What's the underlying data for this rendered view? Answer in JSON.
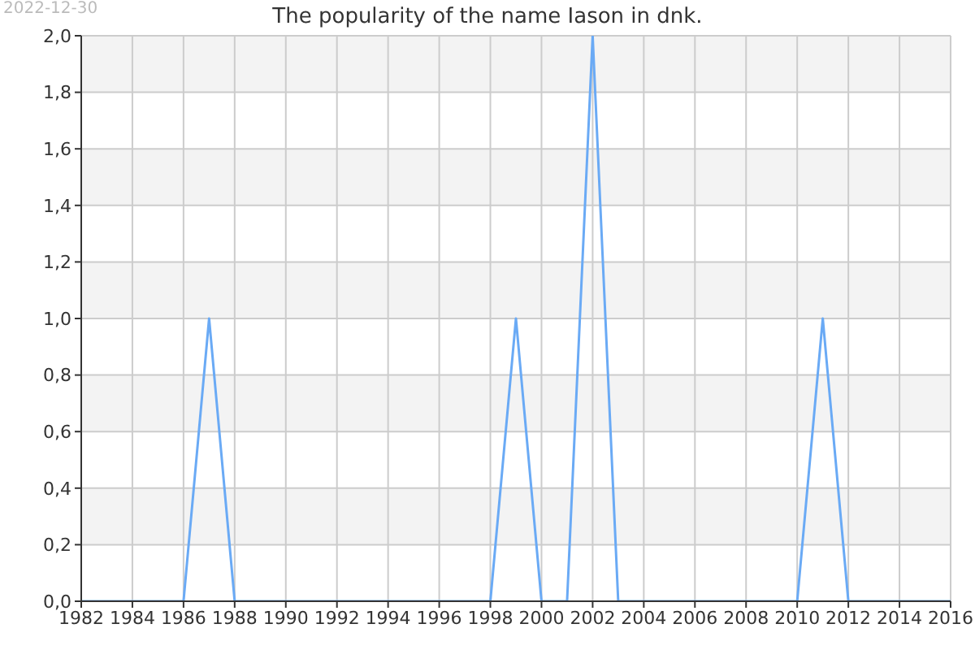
{
  "chart_data": {
    "type": "line",
    "title": "The popularity of the name Iason in dnk.",
    "annotations": [
      "2022-12-30"
    ],
    "x": [
      1982,
      1983,
      1984,
      1985,
      1986,
      1987,
      1988,
      1989,
      1990,
      1991,
      1992,
      1993,
      1994,
      1995,
      1996,
      1997,
      1998,
      1999,
      2000,
      2001,
      2002,
      2003,
      2004,
      2005,
      2006,
      2007,
      2008,
      2009,
      2010,
      2011,
      2012,
      2013,
      2014,
      2015,
      2016
    ],
    "series": [
      {
        "color": "#6aaaf5",
        "values": [
          0,
          0,
          0,
          0,
          0,
          1,
          0,
          0,
          0,
          0,
          0,
          0,
          0,
          0,
          0,
          0,
          0,
          1,
          0,
          0,
          2,
          0,
          0,
          0,
          0,
          0,
          0,
          0,
          0,
          1,
          0,
          0,
          0,
          0,
          0
        ]
      }
    ],
    "xlim": [
      1982,
      2016
    ],
    "xticks": [
      1982,
      1984,
      1986,
      1988,
      1990,
      1992,
      1994,
      1996,
      1998,
      2000,
      2002,
      2004,
      2006,
      2008,
      2010,
      2012,
      2014,
      2016
    ],
    "ylim": [
      0,
      2
    ],
    "yticks": [
      {
        "value": 0,
        "label": "0,0"
      },
      {
        "value": 0.2,
        "label": "0,2"
      },
      {
        "value": 0.4,
        "label": "0,4"
      },
      {
        "value": 0.6,
        "label": "0,6"
      },
      {
        "value": 0.8,
        "label": "0,8"
      },
      {
        "value": 1,
        "label": "1,0"
      },
      {
        "value": 1.2,
        "label": "1,2"
      },
      {
        "value": 1.4,
        "label": "1,4"
      },
      {
        "value": 1.6,
        "label": "1,6"
      },
      {
        "value": 1.8,
        "label": "1,8"
      },
      {
        "value": 2,
        "label": "2,0"
      }
    ],
    "grid": true,
    "marker": "none",
    "line_style": "solid"
  }
}
